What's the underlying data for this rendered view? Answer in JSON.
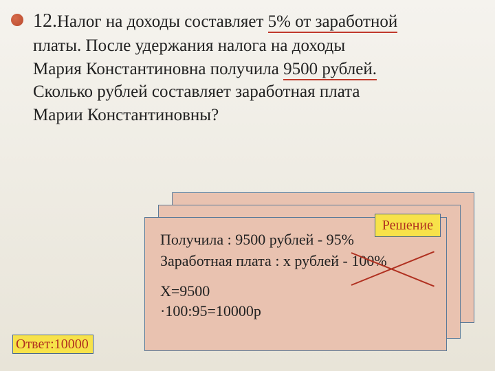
{
  "problem": {
    "number": "12.",
    "text_part1": "Налог на доходы составляет ",
    "percent": "5%",
    "text_part2": " от заработной",
    "text_line2": "платы. После удержания налога на доходы",
    "text_line3a": "Мария Константиновна получила ",
    "amount": "9500 рублей.",
    "text_line4": "Сколько рублей составляет заработная плата",
    "text_line5": "Марии Константиновны?"
  },
  "answer": {
    "label": "Ответ:",
    "value": "10000"
  },
  "solution": {
    "label": "Решение",
    "line1": "Получила : 9500 рублей  -  95%",
    "line2": "Заработная плата :  x рублей  -  100%",
    "line3a": "X=9500",
    "line3b": "·100:95=10000р"
  },
  "colors": {
    "bullet": "#c0543a",
    "underline": "#c0392b",
    "highlight_bg": "#f7e24a",
    "highlight_text": "#b03020",
    "card_bg": "#e9c2b0",
    "card_border": "#5a7a99"
  }
}
